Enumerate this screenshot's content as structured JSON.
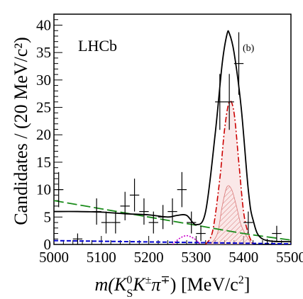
{
  "chart_data": {
    "type": "histogram-with-fit",
    "experiment_label": "LHCb",
    "panel_label": "(b)",
    "xlabel": {
      "pre": "m(K",
      "sup1": "0",
      "sub1": "S",
      "mid": "K",
      "sup2": "±",
      "mid2": "π",
      "sup3": "∓",
      "post": ") [MeV/c",
      "sup4": "2",
      "end": "]"
    },
    "ylabel": "Candidates / (20 MeV/c²)",
    "xlim": [
      5000,
      5500
    ],
    "ylim": [
      0,
      42
    ],
    "xticks": [
      5000,
      5100,
      5200,
      5300,
      5400,
      5500
    ],
    "yticks": [
      0,
      5,
      10,
      15,
      20,
      25,
      30,
      35,
      40
    ],
    "data_points": [
      {
        "x": 5010,
        "y": 10,
        "err": 3.2
      },
      {
        "x": 5050,
        "y": 1,
        "err": 1.0
      },
      {
        "x": 5090,
        "y": 6,
        "err": 2.4
      },
      {
        "x": 5110,
        "y": 4,
        "err": 2.0
      },
      {
        "x": 5130,
        "y": 4,
        "err": 2.0
      },
      {
        "x": 5150,
        "y": 7,
        "err": 2.6
      },
      {
        "x": 5170,
        "y": 9,
        "err": 3.0
      },
      {
        "x": 5190,
        "y": 6,
        "err": 2.4
      },
      {
        "x": 5210,
        "y": 4,
        "err": 2.0
      },
      {
        "x": 5230,
        "y": 5,
        "err": 2.2
      },
      {
        "x": 5250,
        "y": 6,
        "err": 2.4
      },
      {
        "x": 5270,
        "y": 10,
        "err": 3.2
      },
      {
        "x": 5290,
        "y": 4,
        "err": 2.0
      },
      {
        "x": 5310,
        "y": 2,
        "err": 1.4
      },
      {
        "x": 5350,
        "y": 26,
        "err": 5.1
      },
      {
        "x": 5370,
        "y": 26,
        "err": 5.1
      },
      {
        "x": 5390,
        "y": 33,
        "err": 5.7
      },
      {
        "x": 5410,
        "y": 4,
        "err": 2.0
      },
      {
        "x": 5450,
        "y": 0,
        "err": 1.0
      },
      {
        "x": 5470,
        "y": 2,
        "err": 1.4
      }
    ],
    "total_fit": [
      [
        5000,
        6
      ],
      [
        5050,
        6
      ],
      [
        5100,
        5.9
      ],
      [
        5150,
        5.6
      ],
      [
        5200,
        5.4
      ],
      [
        5240,
        5
      ],
      [
        5260,
        5.3
      ],
      [
        5280,
        5.3
      ],
      [
        5300,
        3.6
      ],
      [
        5320,
        6
      ],
      [
        5340,
        20
      ],
      [
        5355,
        33
      ],
      [
        5365,
        38.3
      ],
      [
        5370,
        38.5
      ],
      [
        5380,
        35
      ],
      [
        5395,
        25
      ],
      [
        5410,
        10
      ],
      [
        5420,
        4.5
      ],
      [
        5440,
        1
      ],
      [
        5500,
        0.5
      ]
    ],
    "combinatorial_background": [
      [
        5000,
        8
      ],
      [
        5100,
        6.5
      ],
      [
        5200,
        5
      ],
      [
        5300,
        3.5
      ],
      [
        5400,
        2
      ],
      [
        5500,
        0.8
      ]
    ],
    "signal_1": [
      [
        5320,
        0
      ],
      [
        5335,
        2.5
      ],
      [
        5350,
        12
      ],
      [
        5360,
        21
      ],
      [
        5370,
        26
      ],
      [
        5380,
        24
      ],
      [
        5390,
        15
      ],
      [
        5400,
        6
      ],
      [
        5410,
        2
      ],
      [
        5420,
        0
      ]
    ],
    "signal_2": [
      [
        5330,
        0
      ],
      [
        5345,
        2
      ],
      [
        5355,
        7
      ],
      [
        5365,
        10.5
      ],
      [
        5375,
        10
      ],
      [
        5385,
        7
      ],
      [
        5395,
        3.5
      ],
      [
        5410,
        1
      ],
      [
        5420,
        0
      ]
    ],
    "partially_reconstructed_bg": [
      [
        5250,
        0
      ],
      [
        5265,
        1.1
      ],
      [
        5280,
        1.6
      ],
      [
        5295,
        1.1
      ],
      [
        5310,
        0
      ]
    ],
    "flat_bg": [
      [
        5000,
        0.7
      ],
      [
        5500,
        0.1
      ]
    ],
    "colors": {
      "data": "#000000",
      "total_fit": "#000000",
      "combinatorial": "#1a8c1a",
      "signal": "#cc0000",
      "partially_reconstructed": "#cc00cc",
      "flat": "#0000cc"
    }
  }
}
